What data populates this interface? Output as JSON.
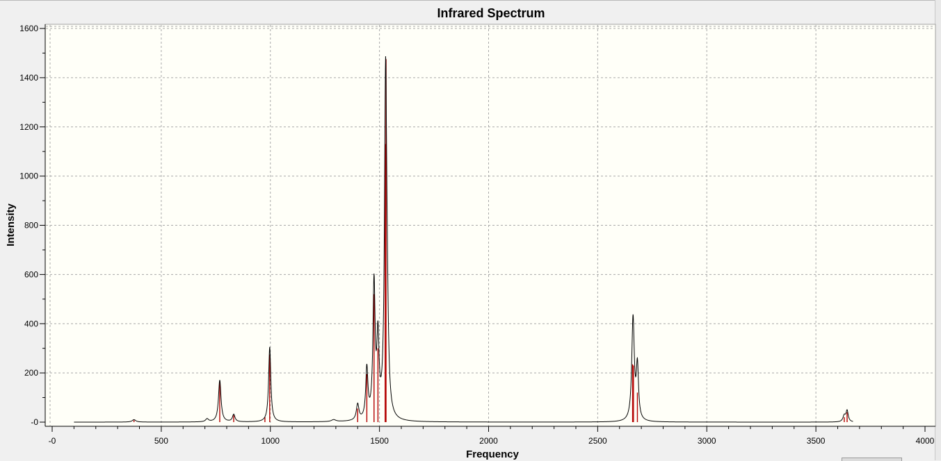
{
  "window": {
    "title": "Infrared Spectrum"
  },
  "chart_data": {
    "type": "line",
    "title": "Infrared Spectrum",
    "xlabel": "Frequency",
    "ylabel": "Intensity",
    "xlim": [
      0,
      4000
    ],
    "ylim": [
      0,
      1600
    ],
    "x_ticks": [
      "0",
      "500",
      "1000",
      "1500",
      "2000",
      "2500",
      "3000",
      "3500",
      "4000"
    ],
    "y_ticks": [
      "0",
      "200",
      "400",
      "600",
      "800",
      "1000",
      "1200",
      "1400",
      "1600"
    ],
    "grid": true,
    "background": "#fffff8",
    "colors": {
      "spectrum": "#000000",
      "sticks": "#b40000",
      "grid": "#a8a8a8"
    },
    "x_range": [
      100,
      3670
    ],
    "series": [
      {
        "kind": "broadened-spectrum",
        "peaks": [
          {
            "x": 375,
            "y": 10,
            "w": 10
          },
          {
            "x": 710,
            "y": 12,
            "w": 8
          },
          {
            "x": 768,
            "y": 170,
            "w": 7
          },
          {
            "x": 832,
            "y": 30,
            "w": 7
          },
          {
            "x": 997,
            "y": 305,
            "w": 6
          },
          {
            "x": 1290,
            "y": 8,
            "w": 12
          },
          {
            "x": 1400,
            "y": 65,
            "w": 7
          },
          {
            "x": 1442,
            "y": 205,
            "w": 6
          },
          {
            "x": 1475,
            "y": 545,
            "w": 6
          },
          {
            "x": 1493,
            "y": 310,
            "w": 6
          },
          {
            "x": 1528,
            "y": 1330,
            "w": 6
          },
          {
            "x": 1535,
            "y": 280,
            "w": 7
          },
          {
            "x": 2662,
            "y": 420,
            "w": 7
          },
          {
            "x": 2682,
            "y": 215,
            "w": 6
          },
          {
            "x": 3630,
            "y": 25,
            "w": 7
          },
          {
            "x": 3643,
            "y": 45,
            "w": 6
          }
        ]
      },
      {
        "kind": "sticks",
        "values": [
          {
            "x": 375,
            "y": 8
          },
          {
            "x": 768,
            "y": 165
          },
          {
            "x": 832,
            "y": 28
          },
          {
            "x": 975,
            "y": 20
          },
          {
            "x": 997,
            "y": 275
          },
          {
            "x": 1400,
            "y": 55
          },
          {
            "x": 1442,
            "y": 195
          },
          {
            "x": 1475,
            "y": 520
          },
          {
            "x": 1493,
            "y": 300
          },
          {
            "x": 1526,
            "y": 1130
          },
          {
            "x": 1530,
            "y": 1475
          },
          {
            "x": 2660,
            "y": 235
          },
          {
            "x": 2664,
            "y": 230
          },
          {
            "x": 2682,
            "y": 120
          },
          {
            "x": 3630,
            "y": 20
          },
          {
            "x": 3643,
            "y": 40
          }
        ]
      }
    ]
  }
}
